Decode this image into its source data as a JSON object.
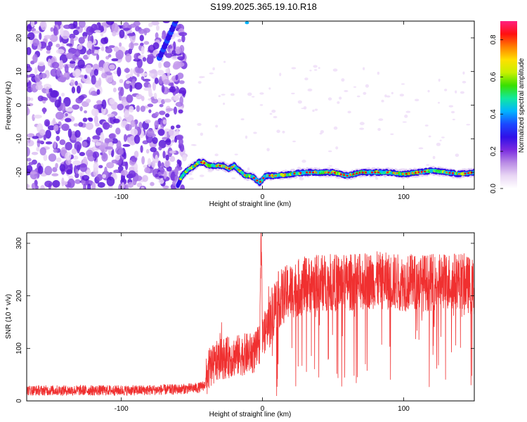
{
  "title": "S199.2025.365.19.10.R18",
  "chart_data": [
    {
      "type": "heatmap",
      "xlabel": "Height of straight line (km)",
      "ylabel": "Frequency (Hz)",
      "xlim": [
        -167,
        150
      ],
      "ylim": [
        -25,
        25
      ],
      "xticks": [
        -100,
        0,
        100
      ],
      "yticks": [
        -20,
        -10,
        0,
        10,
        20
      ],
      "xtick_labels": [
        "-100",
        "0",
        "100"
      ],
      "ytick_labels": [
        "-20",
        "-10",
        "0",
        "10",
        "20"
      ],
      "ridge": {
        "description_x": [
          -60,
          -57,
          -52,
          -48,
          -45,
          -42,
          -38,
          -33,
          -28,
          -24,
          -20,
          -15,
          -12,
          -8,
          -5,
          -2,
          2,
          10,
          20,
          30,
          40,
          50,
          60,
          70,
          80,
          90,
          100,
          110,
          120,
          130,
          140,
          150
        ],
        "frequency_hz": [
          -24,
          -21,
          -19,
          -18,
          -17,
          -17,
          -18,
          -18,
          -18,
          -19,
          -18,
          -20,
          -21,
          -21,
          -22,
          -23,
          -21,
          -21,
          -20.5,
          -20,
          -20,
          -20,
          -21,
          -20,
          -20,
          -20,
          -20.5,
          -20,
          -19.5,
          -20,
          -20.5,
          -20
        ]
      },
      "colorbar": {
        "label": "Normalized spectral amplitude",
        "range": [
          0,
          0.9
        ],
        "ticks": [
          0.0,
          0.2,
          0.4,
          0.6,
          0.8
        ],
        "tick_labels": [
          "0.0",
          "0.2",
          "0.4",
          "0.6",
          "0.8"
        ],
        "colors": [
          "#ffffff",
          "#e9d6f4",
          "#b98be5",
          "#7a2be0",
          "#3010e8",
          "#1a48ff",
          "#00b4ff",
          "#10e8a0",
          "#38e000",
          "#c8f000",
          "#ffe000",
          "#ff8000",
          "#ff1010",
          "#ff2080"
        ]
      }
    },
    {
      "type": "line",
      "xlabel": "Height of straight line (km)",
      "ylabel": "SNR (10 * v/v)",
      "xlim": [
        -167,
        150
      ],
      "ylim": [
        0,
        320
      ],
      "xticks": [
        -100,
        0,
        100
      ],
      "yticks": [
        0,
        100,
        200,
        300
      ],
      "xtick_labels": [
        "-100",
        "0",
        "100"
      ],
      "ytick_labels": [
        "0",
        "100",
        "200",
        "300"
      ],
      "series": [
        {
          "color": "#f03030",
          "x": [
            -167,
            -150,
            -120,
            -90,
            -60,
            -45,
            -41,
            -38,
            -30,
            -20,
            -10,
            -5,
            -2,
            -1,
            0,
            3,
            10,
            20,
            30,
            40,
            60,
            80,
            100,
            120,
            140,
            150
          ],
          "y": [
            20,
            20,
            20,
            20,
            22,
            25,
            30,
            60,
            80,
            85,
            90,
            92,
            110,
            320,
            120,
            140,
            190,
            210,
            220,
            225,
            225,
            230,
            225,
            225,
            230,
            215
          ]
        }
      ]
    }
  ]
}
